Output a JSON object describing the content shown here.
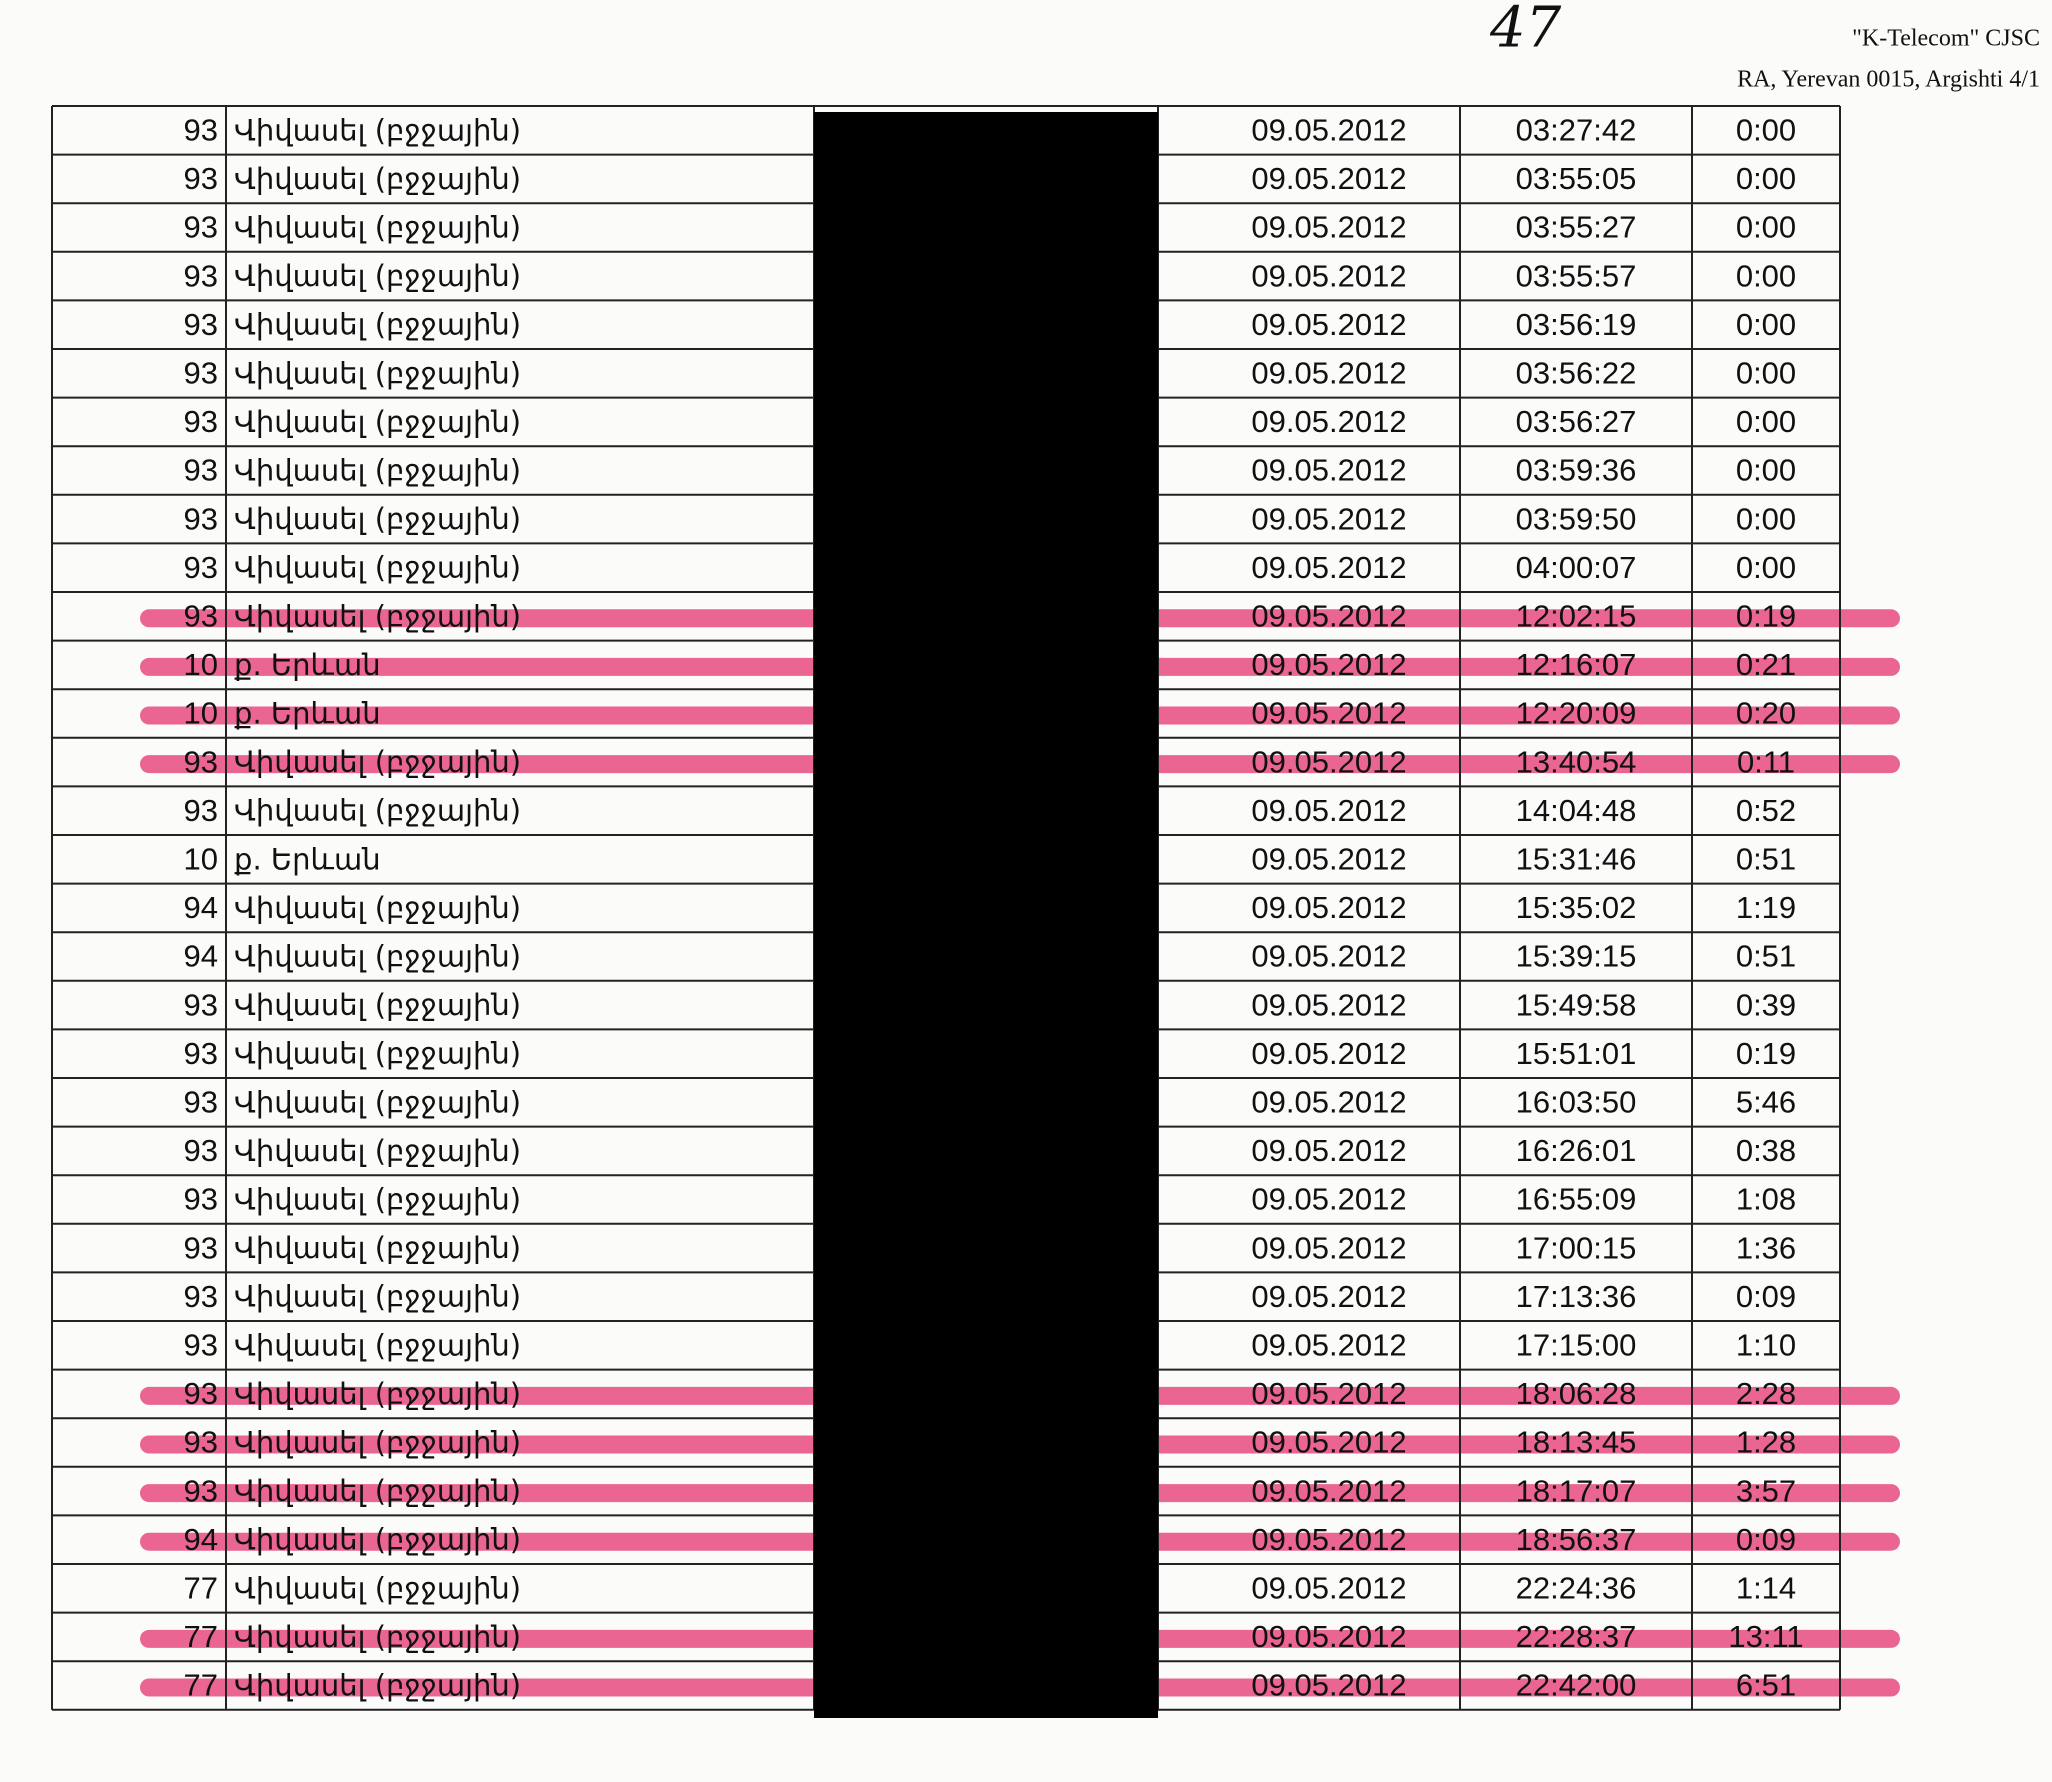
{
  "header": {
    "page_number": "47",
    "company": "\"K-Telecom\" CJSC",
    "address": "RA, Yerevan 0015, Argishti 4/1"
  },
  "table": {
    "rows": [
      [
        "93",
        "Վիվասել (բջջային)",
        "09.05.2012",
        "03:27:42",
        "0:00"
      ],
      [
        "93",
        "Վիվասել (բջջային)",
        "09.05.2012",
        "03:55:05",
        "0:00"
      ],
      [
        "93",
        "Վիվասել (բջջային)",
        "09.05.2012",
        "03:55:27",
        "0:00"
      ],
      [
        "93",
        "Վիվասել (բջջային)",
        "09.05.2012",
        "03:55:57",
        "0:00"
      ],
      [
        "93",
        "Վիվասել (բջջային)",
        "09.05.2012",
        "03:56:19",
        "0:00"
      ],
      [
        "93",
        "Վիվասել (բջջային)",
        "09.05.2012",
        "03:56:22",
        "0:00"
      ],
      [
        "93",
        "Վիվասել (բջջային)",
        "09.05.2012",
        "03:56:27",
        "0:00"
      ],
      [
        "93",
        "Վիվասել (բջջային)",
        "09.05.2012",
        "03:59:36",
        "0:00"
      ],
      [
        "93",
        "Վիվասել (բջջային)",
        "09.05.2012",
        "03:59:50",
        "0:00"
      ],
      [
        "93",
        "Վիվասել (բջջային)",
        "09.05.2012",
        "04:00:07",
        "0:00"
      ],
      [
        "93",
        "Վիվասել (բջջային)",
        "09.05.2012",
        "12:02:15",
        "0:19"
      ],
      [
        "10",
        "ք. Երևան",
        "09.05.2012",
        "12:16:07",
        "0:21"
      ],
      [
        "10",
        "ք. Երևան",
        "09.05.2012",
        "12:20:09",
        "0:20"
      ],
      [
        "93",
        "Վիվասել (բջջային)",
        "09.05.2012",
        "13:40:54",
        "0:11"
      ],
      [
        "93",
        "Վիվասել (բջջային)",
        "09.05.2012",
        "14:04:48",
        "0:52"
      ],
      [
        "10",
        "ք. Երևան",
        "09.05.2012",
        "15:31:46",
        "0:51"
      ],
      [
        "94",
        "Վիվասել (բջջային)",
        "09.05.2012",
        "15:35:02",
        "1:19"
      ],
      [
        "94",
        "Վիվասել (բջջային)",
        "09.05.2012",
        "15:39:15",
        "0:51"
      ],
      [
        "93",
        "Վիվասել (բջջային)",
        "09.05.2012",
        "15:49:58",
        "0:39"
      ],
      [
        "93",
        "Վիվասել (բջջային)",
        "09.05.2012",
        "15:51:01",
        "0:19"
      ],
      [
        "93",
        "Վիվասել (բջջային)",
        "09.05.2012",
        "16:03:50",
        "5:46"
      ],
      [
        "93",
        "Վիվասել (բջջային)",
        "09.05.2012",
        "16:26:01",
        "0:38"
      ],
      [
        "93",
        "Վիվասել (բջջային)",
        "09.05.2012",
        "16:55:09",
        "1:08"
      ],
      [
        "93",
        "Վիվասել (բջջային)",
        "09.05.2012",
        "17:00:15",
        "1:36"
      ],
      [
        "93",
        "Վիվասել (բջջային)",
        "09.05.2012",
        "17:13:36",
        "0:09"
      ],
      [
        "93",
        "Վիվասել (բջջային)",
        "09.05.2012",
        "17:15:00",
        "1:10"
      ],
      [
        "93",
        "Վիվասել (բջջային)",
        "09.05.2012",
        "18:06:28",
        "2:28"
      ],
      [
        "93",
        "Վիվասել (բջջային)",
        "09.05.2012",
        "18:13:45",
        "1:28"
      ],
      [
        "93",
        "Վիվասել (բջջային)",
        "09.05.2012",
        "18:17:07",
        "3:57"
      ],
      [
        "94",
        "Վիվասել (բջջային)",
        "09.05.2012",
        "18:56:37",
        "0:09"
      ],
      [
        "77",
        "Վիվասել (բջջային)",
        "09.05.2012",
        "22:24:36",
        "1:14"
      ],
      [
        "77",
        "Վիվասել (բջջային)",
        "09.05.2012",
        "22:28:37",
        "13:11"
      ],
      [
        "77",
        "Վիվասել (բջջային)",
        "09.05.2012",
        "22:42:00",
        "6:51"
      ]
    ]
  }
}
